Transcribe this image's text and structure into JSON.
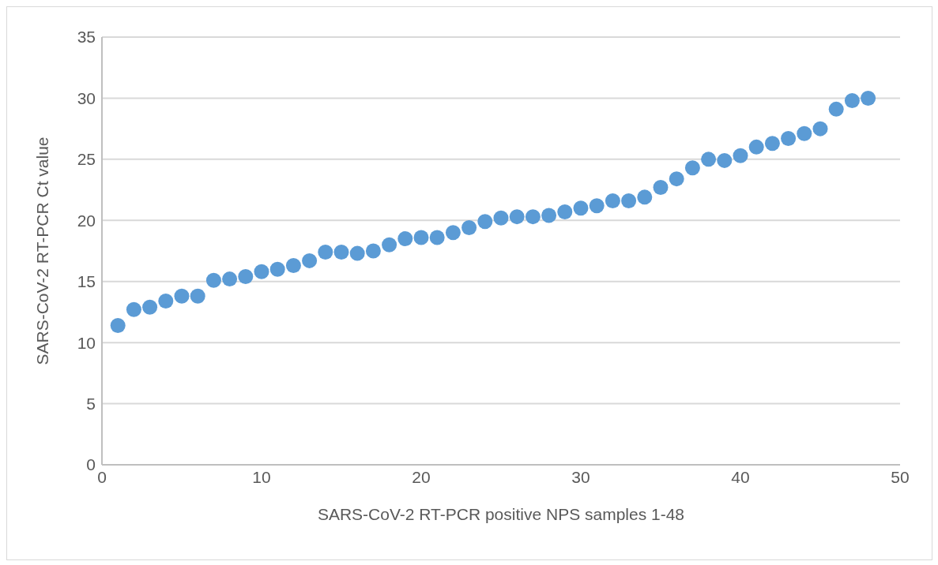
{
  "chart_data": {
    "type": "scatter",
    "xlabel": "SARS-CoV-2 RT-PCR positive NPS samples 1-48",
    "ylabel": "SARS-CoV-2 RT-PCR Ct value",
    "x": [
      1,
      2,
      3,
      4,
      5,
      6,
      7,
      8,
      9,
      10,
      11,
      12,
      13,
      14,
      15,
      16,
      17,
      18,
      19,
      20,
      21,
      22,
      23,
      24,
      25,
      26,
      27,
      28,
      29,
      30,
      31,
      32,
      33,
      34,
      35,
      36,
      37,
      38,
      39,
      40,
      41,
      42,
      43,
      44,
      45,
      46,
      47,
      48
    ],
    "series": [
      {
        "color": "#5b9bd5",
        "values": [
          11.4,
          12.7,
          12.9,
          13.4,
          13.8,
          13.8,
          15.1,
          15.2,
          15.4,
          15.8,
          16.0,
          16.3,
          16.7,
          17.4,
          17.4,
          17.3,
          17.5,
          18.0,
          18.5,
          18.6,
          18.6,
          19.0,
          19.4,
          19.9,
          20.2,
          20.3,
          20.3,
          20.4,
          20.7,
          21.0,
          21.2,
          21.6,
          21.6,
          21.9,
          22.7,
          23.4,
          24.3,
          25.0,
          24.9,
          25.3,
          26.0,
          26.3,
          26.7,
          27.1,
          27.5,
          29.1,
          29.8,
          30.0
        ]
      }
    ],
    "xlim": [
      0,
      50
    ],
    "xticks": [
      0,
      10,
      20,
      30,
      40,
      50
    ],
    "ylim": [
      0,
      35
    ],
    "yticks": [
      0,
      5,
      10,
      15,
      20,
      25,
      30,
      35
    ],
    "grid": "y",
    "marker": "circle",
    "legend": false
  }
}
